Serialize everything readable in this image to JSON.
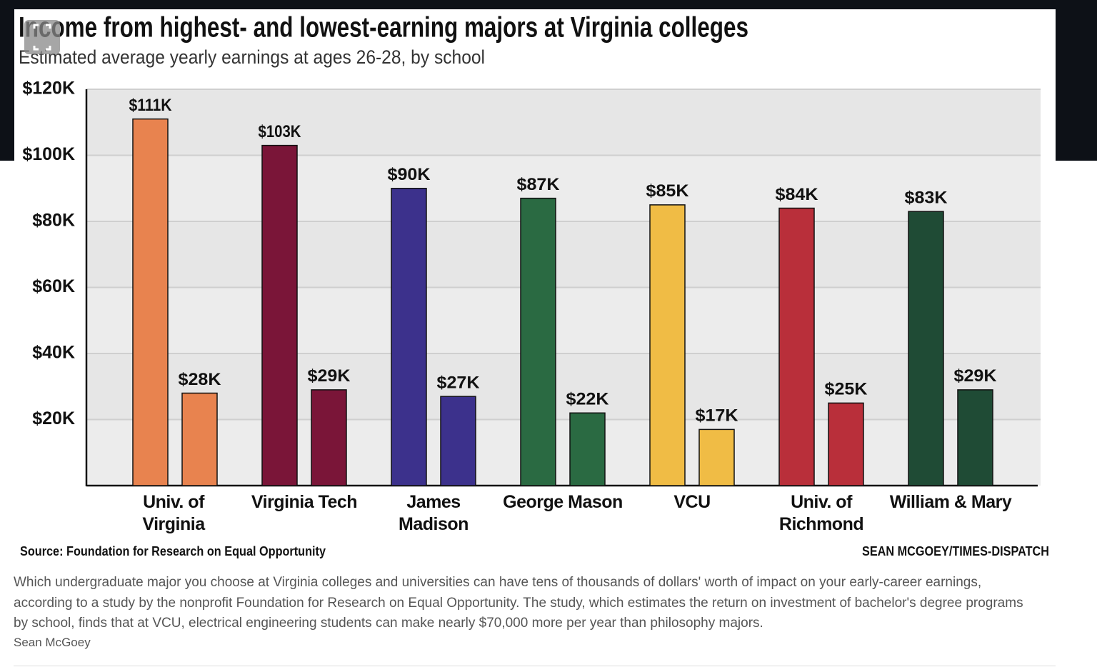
{
  "chart_data": {
    "type": "bar",
    "title": "Income from highest- and lowest-earning majors at Virginia colleges",
    "subtitle": "Estimated average yearly earnings at ages 26-28, by school",
    "categories": [
      "Univ. of Virginia",
      "Virginia Tech",
      "James Madison",
      "George Mason",
      "VCU",
      "Univ. of Richmond",
      "William & Mary"
    ],
    "colors": [
      "#e8834f",
      "#7a1538",
      "#3c318c",
      "#2a6a42",
      "#f0bc45",
      "#b92f3a",
      "#1f4b35"
    ],
    "series": [
      {
        "values": [
          111,
          103,
          90,
          87,
          85,
          84,
          83
        ],
        "value_labels": [
          "$111K",
          "$103K",
          "$90K",
          "$87K",
          "$85K",
          "$84K",
          "$83K"
        ]
      },
      {
        "values": [
          28,
          29,
          27,
          22,
          17,
          25,
          29
        ],
        "value_labels": [
          "$28K",
          "$29K",
          "$27K",
          "$22K",
          "$17K",
          "$25K",
          "$29K"
        ]
      }
    ],
    "ylim": [
      0,
      120
    ],
    "yticks": [
      {
        "value": 20,
        "label": "$20K"
      },
      {
        "value": 40,
        "label": "$40K"
      },
      {
        "value": 60,
        "label": "$60K"
      },
      {
        "value": 80,
        "label": "$80K"
      },
      {
        "value": 100,
        "label": "$100K"
      },
      {
        "value": 120,
        "label": "$120K"
      }
    ],
    "grid": true,
    "source": "Source: Foundation for Research on Equal Opportunity",
    "credit": "SEAN MCGOEY/TIMES-DISPATCH"
  },
  "caption": "Which undergraduate major you choose at Virginia colleges and universities can have tens of thousands of dollars' worth of impact on your early-career earnings, according to a study by the nonprofit Foundation for Research on Equal Opportunity. The study, which estimates the return on investment of bachelor's degree programs by school, finds that at VCU, electrical engineering students can make nearly $70,000 more per year than philosophy majors.",
  "byline": "Sean McGoey"
}
